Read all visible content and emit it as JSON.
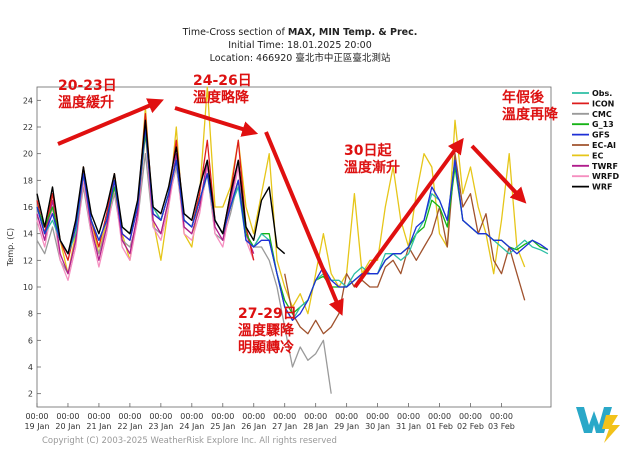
{
  "chart_data": {
    "type": "line",
    "title": "Time-Cross section of MAX, MIN Temp. & Prec.",
    "title_bold": "MAX, MIN Temp. & Prec.",
    "subtitle_initial": "Initial Time: 18.01.2025 20:00",
    "subtitle_location": "Location: 466920 臺北市中正區臺北測站",
    "ylabel": "Temp. (C)",
    "ylim": [
      1,
      25
    ],
    "yticks": [
      2,
      4,
      6,
      8,
      10,
      12,
      14,
      16,
      18,
      20,
      22,
      24
    ],
    "xlim": [
      0,
      16.6
    ],
    "xticks": [
      {
        "time": "00:00",
        "date": "19 Jan"
      },
      {
        "time": "00:00",
        "date": "20 Jan"
      },
      {
        "time": "00:00",
        "date": "21 Jan"
      },
      {
        "time": "00:00",
        "date": "22 Jan"
      },
      {
        "time": "00:00",
        "date": "23 Jan"
      },
      {
        "time": "00:00",
        "date": "24 Jan"
      },
      {
        "time": "00:00",
        "date": "25 Jan"
      },
      {
        "time": "00:00",
        "date": "26 Jan"
      },
      {
        "time": "00:00",
        "date": "27 Jan"
      },
      {
        "time": "00:00",
        "date": "28 Jan"
      },
      {
        "time": "00:00",
        "date": "29 Jan"
      },
      {
        "time": "00:00",
        "date": "30 Jan"
      },
      {
        "time": "00:00",
        "date": "31 Jan"
      },
      {
        "time": "00:00",
        "date": "01 Feb"
      },
      {
        "time": "00:00",
        "date": "02 Feb"
      },
      {
        "time": "00:00",
        "date": "03 Feb"
      }
    ],
    "series": [
      {
        "name": "WRF",
        "color": "#000000",
        "width": 1.4,
        "x": [
          0,
          0.25,
          0.5,
          0.75,
          1,
          1.25,
          1.5,
          1.75,
          2,
          2.25,
          2.5,
          2.75,
          3,
          3.25,
          3.5,
          3.75,
          4,
          4.25,
          4.5,
          4.75,
          5,
          5.25,
          5.5,
          5.75,
          6,
          6.25,
          6.5,
          6.75,
          7,
          7.25,
          7.5,
          7.75,
          8
        ],
        "y": [
          17,
          14.5,
          17.5,
          13.5,
          12.5,
          15,
          19,
          15.5,
          14,
          16,
          18.5,
          14.5,
          14,
          16.5,
          22.5,
          16,
          15.5,
          17.5,
          20.5,
          15.5,
          15,
          17.5,
          19.5,
          15,
          14,
          17,
          19.5,
          14.5,
          13.5,
          16.5,
          17.5,
          13,
          12.5
        ]
      },
      {
        "name": "Obs.",
        "color": "#2ebfa5",
        "width": 1.3,
        "x": [
          0,
          0.25,
          0.5,
          0.75,
          1,
          1.25,
          1.5,
          1.75,
          2,
          2.25,
          2.5,
          2.75,
          3,
          3.25,
          3.5,
          3.75,
          4,
          4.25,
          4.5,
          4.75,
          5,
          5.25,
          5.5,
          5.75,
          6,
          6.25,
          6.5,
          6.75,
          7,
          7.25,
          7.5,
          7.75,
          8,
          8.25,
          8.5,
          8.75,
          9,
          9.25,
          9.5,
          9.75,
          10,
          10.25,
          10.5,
          10.75,
          11,
          11.25,
          11.5,
          11.75,
          12,
          12.25,
          12.5,
          12.75,
          13,
          13.25,
          13.5,
          13.75,
          14,
          14.25,
          14.5,
          14.75,
          15,
          15.25,
          15.5,
          15.75,
          16,
          16.25,
          16.5
        ],
        "y": [
          16,
          14,
          15,
          13.5,
          12.5,
          14,
          18.5,
          15,
          13.5,
          15,
          18,
          14.5,
          14,
          16,
          22,
          16,
          15,
          17,
          19.5,
          15,
          14.5,
          16.5,
          18.5,
          15,
          14,
          16,
          17.5,
          13.5,
          13,
          14,
          13.5,
          11,
          8.5,
          7.5,
          8.5,
          9,
          10.5,
          11,
          10.5,
          10.5,
          10,
          11,
          11.5,
          11,
          11,
          12.5,
          12.5,
          12,
          12.5,
          14,
          15,
          17,
          16.5,
          15,
          19.5,
          15,
          14.5,
          14,
          14,
          13.5,
          13,
          12.5,
          13,
          13.5,
          13,
          12.8,
          12.5
        ]
      },
      {
        "name": "ICON",
        "color": "#dd1c1c",
        "width": 1.3,
        "x": [
          0,
          0.25,
          0.5,
          0.75,
          1,
          1.25,
          1.5,
          1.75,
          2,
          2.25,
          2.5,
          2.75,
          3,
          3.25,
          3.5,
          3.75,
          4,
          4.25,
          4.5,
          4.75,
          5,
          5.25,
          5.5,
          5.75,
          6,
          6.25,
          6.5,
          6.75,
          7
        ],
        "y": [
          16.5,
          14,
          17,
          13.5,
          12,
          14.5,
          19,
          15,
          13,
          15.5,
          18.5,
          14,
          13.5,
          16,
          23,
          15.5,
          15,
          17,
          21,
          15,
          14.5,
          17,
          21,
          15,
          14,
          17,
          21,
          14.5,
          12
        ]
      },
      {
        "name": "CMC",
        "color": "#9a9a9a",
        "width": 1.3,
        "x": [
          0,
          0.25,
          0.5,
          0.75,
          1,
          1.25,
          1.5,
          1.75,
          2,
          2.25,
          2.5,
          2.75,
          3,
          3.25,
          3.5,
          3.75,
          4,
          4.25,
          4.5,
          4.75,
          5,
          5.25,
          5.5,
          5.75,
          6,
          6.25,
          6.5,
          6.75,
          7,
          7.25,
          7.5,
          7.75,
          8,
          8.25,
          8.5,
          8.75,
          9,
          9.25,
          9.5
        ],
        "y": [
          13.5,
          12.5,
          14.5,
          12,
          11,
          13.5,
          17.5,
          14,
          12.5,
          14.5,
          17,
          13.5,
          13,
          15,
          20,
          14.5,
          14,
          16.5,
          19,
          14.5,
          14,
          16,
          18.5,
          14,
          13.5,
          15.5,
          18,
          13.5,
          13,
          13,
          12,
          10,
          7,
          4,
          5.5,
          4.5,
          5,
          6,
          2
        ]
      },
      {
        "name": "G_13",
        "color": "#16b316",
        "width": 1.3,
        "x": [
          0,
          0.25,
          0.5,
          0.75,
          1,
          1.25,
          1.5,
          1.75,
          2,
          2.25,
          2.5,
          2.75,
          3,
          3.25,
          3.5,
          3.75,
          4,
          4.25,
          4.5,
          4.75,
          5,
          5.25,
          5.5,
          5.75,
          6,
          6.25,
          6.5,
          6.75,
          7,
          7.25,
          7.5,
          7.75,
          8,
          8.25,
          8.5,
          8.75,
          9,
          9.25,
          9.5,
          9.75,
          10,
          10.25,
          10.5,
          10.75,
          11,
          11.25,
          11.5,
          11.75,
          12,
          12.25,
          12.5,
          12.75,
          13,
          13.25,
          13.5,
          13.75,
          14,
          14.25,
          14.5,
          14.75,
          15,
          15.25,
          15.5,
          15.75,
          16,
          16.25,
          16.5
        ],
        "y": [
          16,
          14.5,
          16,
          13.5,
          12.5,
          14.5,
          18.5,
          15,
          13.5,
          15,
          17.5,
          14.5,
          14,
          16,
          21.5,
          16,
          15,
          17,
          19.5,
          15,
          14.5,
          16.5,
          18.5,
          15,
          14,
          16,
          18,
          14,
          13,
          14,
          14,
          11,
          9,
          8,
          8.5,
          9,
          10.5,
          10.8,
          10,
          10,
          10,
          10.5,
          11,
          11,
          11,
          12,
          12.5,
          12.5,
          13,
          14,
          14.5,
          16.5,
          16,
          14.5,
          19,
          15,
          14.5,
          14,
          14,
          13.5,
          13.5,
          13,
          12.8,
          13.2,
          13.5,
          13,
          12.8
        ]
      },
      {
        "name": "GFS",
        "color": "#1e2fd6",
        "width": 1.3,
        "x": [
          0,
          0.25,
          0.5,
          0.75,
          1,
          1.25,
          1.5,
          1.75,
          2,
          2.25,
          2.5,
          2.75,
          3,
          3.25,
          3.5,
          3.75,
          4,
          4.25,
          4.5,
          4.75,
          5,
          5.25,
          5.5,
          5.75,
          6,
          6.25,
          6.5,
          6.75,
          7,
          7.25,
          7.5,
          7.75,
          8,
          8.25,
          8.5,
          8.75,
          9,
          9.25,
          9.5,
          9.75,
          10,
          10.25,
          10.5,
          10.75,
          11,
          11.25,
          11.5,
          11.75,
          12,
          12.25,
          12.5,
          12.75,
          13,
          13.25,
          13.5,
          13.75,
          14,
          14.25,
          14.5,
          14.75,
          15,
          15.25,
          15.5,
          15.75,
          16,
          16.25,
          16.5
        ],
        "y": [
          16,
          14,
          15.5,
          13.5,
          12.5,
          14.5,
          18.5,
          15,
          13.5,
          15,
          18,
          14,
          13.5,
          16,
          22,
          15.5,
          15,
          17,
          19.5,
          15,
          14.5,
          16.5,
          18.5,
          15,
          14,
          16,
          18,
          13.5,
          13,
          13.5,
          13.5,
          11,
          8.5,
          7.5,
          8,
          9,
          10.5,
          11.5,
          10.5,
          10,
          10,
          10.5,
          11,
          11,
          11,
          12,
          12.5,
          12.5,
          13,
          14.5,
          15,
          17.5,
          16.5,
          15,
          19.5,
          15,
          14.5,
          14,
          14,
          13.5,
          13.5,
          13,
          12.5,
          13,
          13.5,
          13.2,
          12.8
        ]
      },
      {
        "name": "EC-AI",
        "color": "#a0522d",
        "width": 1.3,
        "x": [
          8,
          8.25,
          8.5,
          8.75,
          9,
          9.25,
          9.5,
          9.75,
          10,
          10.25,
          10.5,
          10.75,
          11,
          11.25,
          11.5,
          11.75,
          12,
          12.25,
          12.5,
          12.75,
          13,
          13.25,
          13.5,
          13.75,
          14,
          14.25,
          14.5,
          14.75,
          15,
          15.25,
          15.5,
          15.75
        ],
        "y": [
          11,
          8,
          7,
          6.5,
          7.5,
          6.5,
          7,
          8,
          11,
          10,
          10.5,
          10,
          10,
          11.5,
          12,
          11,
          13,
          12,
          13,
          14,
          16,
          13,
          20,
          16,
          17,
          14,
          15.5,
          12,
          11,
          13,
          11,
          9
        ]
      },
      {
        "name": "EC",
        "color": "#e6c619",
        "width": 1.3,
        "x": [
          0,
          0.25,
          0.5,
          0.75,
          1,
          1.25,
          1.5,
          1.75,
          2,
          2.25,
          2.5,
          2.75,
          3,
          3.25,
          3.5,
          3.75,
          4,
          4.25,
          4.5,
          4.75,
          5,
          5.25,
          5.5,
          5.75,
          6,
          6.25,
          6.5,
          6.75,
          7,
          7.25,
          7.5,
          7.75,
          8,
          8.25,
          8.5,
          8.75,
          9,
          9.25,
          9.5,
          9.75,
          10,
          10.25,
          10.5,
          10.75,
          11,
          11.25,
          11.5,
          11.75,
          12,
          12.25,
          12.5,
          12.75,
          13,
          13.25,
          13.5,
          13.75,
          14,
          14.25,
          14.5,
          14.75,
          15,
          15.25,
          15.5,
          15.75
        ],
        "y": [
          16,
          14,
          17,
          13.5,
          11,
          14,
          19,
          15,
          12.5,
          15,
          18.5,
          14,
          12,
          15.5,
          23.5,
          15,
          12,
          16,
          22,
          14,
          13,
          17,
          25,
          16,
          16,
          17.5,
          21,
          16,
          14,
          17,
          20,
          12,
          10,
          8.5,
          9.5,
          8,
          11,
          14,
          11,
          10,
          11,
          17,
          11,
          12,
          12,
          16,
          19,
          15,
          13,
          17,
          20,
          19,
          14,
          13,
          22.5,
          17,
          19,
          16,
          14,
          11,
          15,
          20,
          13,
          11.5
        ]
      },
      {
        "name": "TWRF",
        "color": "#b01c8c",
        "width": 1.3,
        "x": [
          0,
          0.25,
          0.5,
          0.75,
          1,
          1.25,
          1.5,
          1.75,
          2,
          2.25,
          2.5,
          2.75,
          3,
          3.25,
          3.5,
          3.75,
          4,
          4.25,
          4.5,
          4.75,
          5,
          5.25,
          5.5,
          5.75,
          6,
          6.25,
          6.5,
          6.75,
          7
        ],
        "y": [
          15.5,
          13.5,
          16.5,
          12.5,
          11,
          13.5,
          18.5,
          14.5,
          12,
          14.5,
          18,
          13.5,
          12.5,
          15.5,
          22,
          15,
          14,
          16.5,
          20,
          14.5,
          14,
          16,
          19.5,
          14.5,
          13.5,
          16.5,
          19.5,
          14,
          12.5
        ]
      },
      {
        "name": "WRFD",
        "color": "#f58fc0",
        "width": 1.3,
        "x": [
          0,
          0.25,
          0.5,
          0.75,
          1,
          1.25,
          1.5,
          1.75,
          2,
          2.25,
          2.5,
          2.75,
          3,
          3.25,
          3.5,
          3.75,
          4,
          4.25,
          4.5,
          4.75,
          5,
          5.25,
          5.5,
          5.75,
          6,
          6.25,
          6.5,
          6.75,
          7
        ],
        "y": [
          15,
          13,
          16,
          12,
          10.5,
          13,
          18,
          14,
          11.5,
          14,
          17.5,
          13,
          12,
          15,
          21.5,
          14.5,
          13.5,
          16,
          19.5,
          14,
          13.5,
          15.5,
          19,
          14,
          13,
          16,
          19,
          13.5,
          12
        ]
      }
    ],
    "annotations": [
      {
        "lines": [
          "20-23日",
          "溫度緩升"
        ],
        "color": "#dd1111"
      },
      {
        "lines": [
          "24-26日",
          "溫度略降"
        ],
        "color": "#dd1111"
      },
      {
        "lines": [
          "27-29日",
          "溫度驟降",
          "明顯轉冷"
        ],
        "color": "#dd1111"
      },
      {
        "lines": [
          "30日起",
          "溫度漸升"
        ],
        "color": "#dd1111"
      },
      {
        "lines": [
          "年假後",
          "溫度再降"
        ],
        "color": "#dd1111"
      }
    ],
    "legend_position": "top-right"
  },
  "footer": {
    "copyright": "Copyright (C) 2003-2025 WeatherRisk Explore Inc. All rights reserved",
    "logo_text": "W"
  }
}
